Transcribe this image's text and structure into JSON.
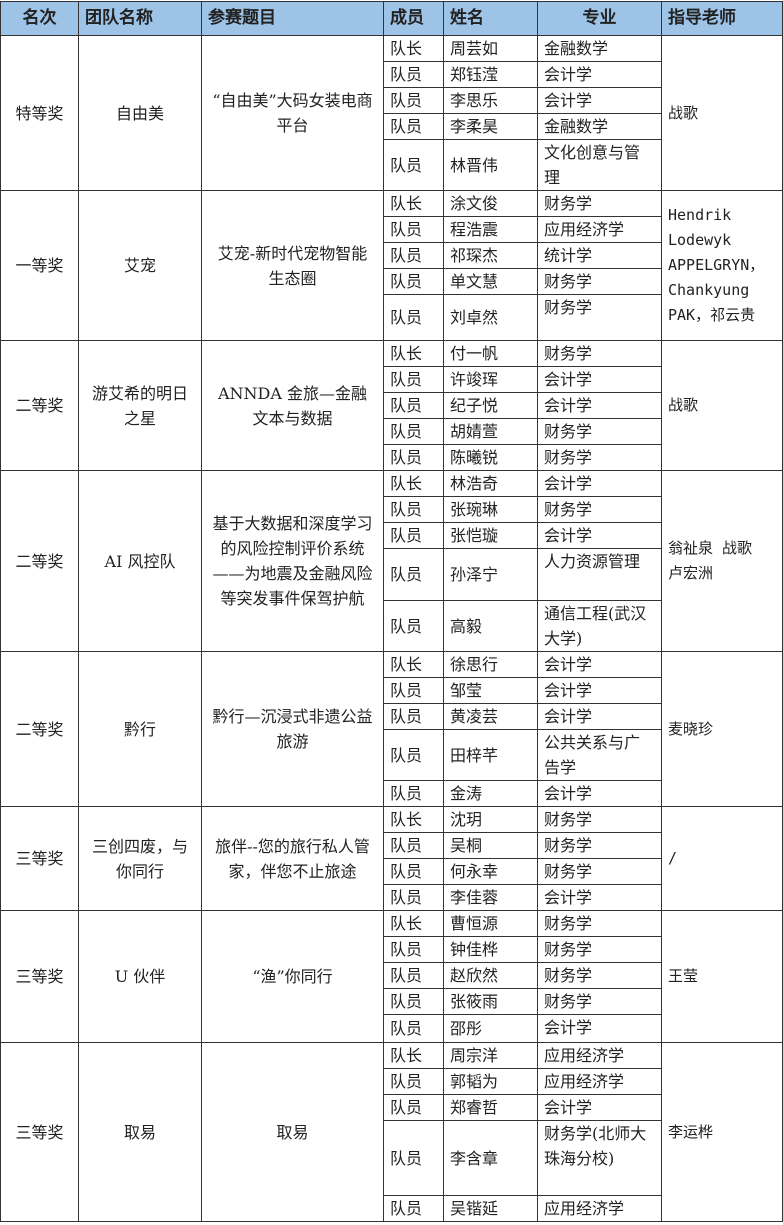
{
  "headers": [
    "名次",
    "团队名称",
    "参赛题目",
    "成员",
    "姓名",
    "专业",
    "指导老师"
  ],
  "teams": [
    {
      "rank": "特等奖",
      "team": "自由美",
      "topic": "“自由美”大码女装电商平台",
      "teacher": "战歌",
      "members": [
        [
          "队长",
          "周芸如",
          "金融数学"
        ],
        [
          "队员",
          "郑钰滢",
          "会计学"
        ],
        [
          "队员",
          "李思乐",
          "会计学"
        ],
        [
          "队员",
          "李柔昊",
          "金融数学"
        ],
        [
          "队员",
          "林晋伟",
          "文化创意与管理"
        ]
      ]
    },
    {
      "rank": "一等奖",
      "team": "艾宠",
      "topic": "艾宠-新时代宠物智能生态圈",
      "teacher": "Hendrik Lodewyk APPELGRYN，Chankyung PAK，祁云贵",
      "members": [
        [
          "队长",
          "涂文俊",
          "财务学"
        ],
        [
          "队员",
          "程浩震",
          "应用经济学"
        ],
        [
          "队员",
          "祁琛杰",
          "统计学"
        ],
        [
          "队员",
          "单文慧",
          "财务学"
        ],
        [
          "队员",
          "刘卓然",
          "财务学"
        ]
      ]
    },
    {
      "rank": "二等奖",
      "team": "游艾希的明日之星",
      "topic": "ANNDA 金旅—金融文本与数据",
      "teacher": "战歌",
      "members": [
        [
          "队长",
          "付一帆",
          "财务学"
        ],
        [
          "队员",
          "许竣珲",
          "会计学"
        ],
        [
          "队员",
          "纪子悦",
          "会计学"
        ],
        [
          "队员",
          "胡婧萱",
          "财务学"
        ],
        [
          "队员",
          "陈曦锐",
          "财务学"
        ]
      ]
    },
    {
      "rank": "二等奖",
      "team": "AI 风控队",
      "topic": "基于大数据和深度学习的风险控制评价系统——为地震及金融风险等突发事件保驾护航",
      "teacher": "翁祉泉 战歌 卢宏洲",
      "members": [
        [
          "队长",
          "林浩奇",
          "会计学"
        ],
        [
          "队员",
          "张琬琳",
          "财务学"
        ],
        [
          "队员",
          "张恺璇",
          "会计学"
        ],
        [
          "队员",
          "孙泽宁",
          "人力资源管理"
        ],
        [
          "队员",
          "高毅",
          "通信工程(武汉大学)"
        ]
      ]
    },
    {
      "rank": "二等奖",
      "team": "黔行",
      "topic": "黔行—沉浸式非遗公益旅游",
      "teacher": "麦晓珍",
      "members": [
        [
          "队长",
          "徐思行",
          "会计学"
        ],
        [
          "队员",
          "邹莹",
          "会计学"
        ],
        [
          "队员",
          "黄凌芸",
          "会计学"
        ],
        [
          "队员",
          "田梓芊",
          "公共关系与广告学"
        ],
        [
          "队员",
          "金涛",
          "会计学"
        ]
      ]
    },
    {
      "rank": "三等奖",
      "team": "三创四废，与你同行",
      "topic": "旅伴--您的旅行私人管家，伴您不止旅途",
      "teacher": "/",
      "members": [
        [
          "队长",
          "沈玥",
          "财务学"
        ],
        [
          "队员",
          "吴桐",
          "财务学"
        ],
        [
          "队员",
          "何永幸",
          "财务学"
        ],
        [
          "队员",
          "李佳蓉",
          "会计学"
        ]
      ]
    },
    {
      "rank": "三等奖",
      "team": "U 伙伴",
      "topic": "“渔”你同行",
      "teacher": "王莹",
      "members": [
        [
          "队长",
          "曹恒源",
          "财务学"
        ],
        [
          "队员",
          "钟佳桦",
          "财务学"
        ],
        [
          "队员",
          "赵欣然",
          "财务学"
        ],
        [
          "队员",
          "张筱雨",
          "财务学"
        ],
        [
          "队员",
          "邵彤",
          "会计学"
        ]
      ]
    },
    {
      "rank": "三等奖",
      "team": "取易",
      "topic": "取易",
      "teacher": "李运桦",
      "members": [
        [
          "队长",
          "周宗洋",
          "应用经济学"
        ],
        [
          "队员",
          "郭韬为",
          "应用经济学"
        ],
        [
          "队员",
          "郑睿哲",
          "会计学"
        ],
        [
          "队员",
          "李含章",
          "财务学(北师大珠海分校)"
        ],
        [
          "队员",
          "吴锴延",
          "应用经济学"
        ]
      ]
    }
  ]
}
